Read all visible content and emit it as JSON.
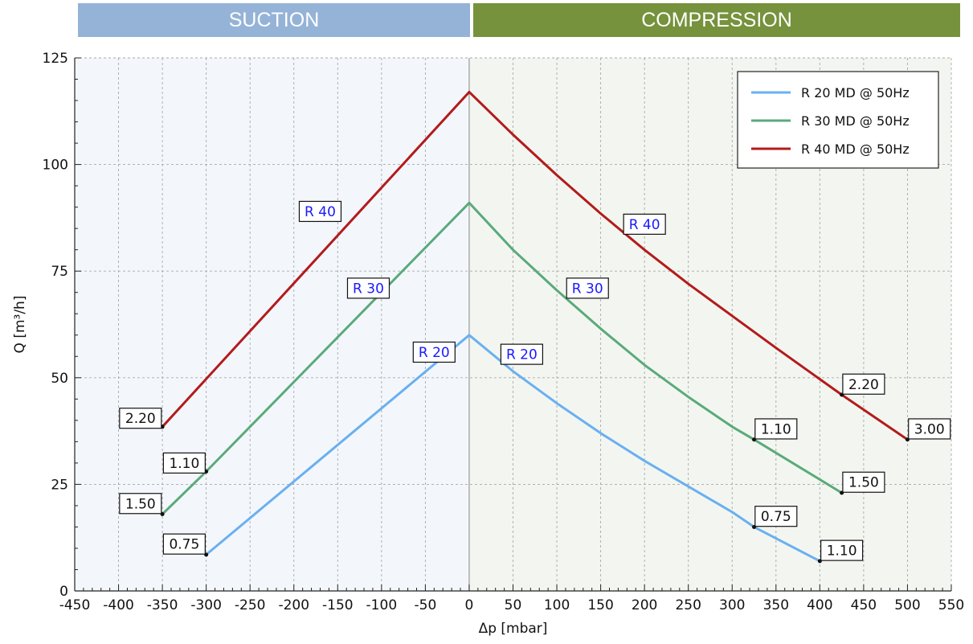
{
  "banners": {
    "suction": {
      "label": "SUCTION",
      "color": "#95b3d7"
    },
    "compression": {
      "label": "COMPRESSION",
      "color": "#76923c"
    }
  },
  "chart_data": {
    "type": "line",
    "xlabel": "Δp [mbar]",
    "ylabel": "Q [m³/h]",
    "xlim": [
      -450,
      550
    ],
    "ylim": [
      0,
      125
    ],
    "xticks": [
      -450,
      -400,
      -350,
      -300,
      -250,
      -200,
      -150,
      -100,
      -50,
      0,
      50,
      100,
      150,
      200,
      250,
      300,
      350,
      400,
      450,
      500,
      550
    ],
    "yticks": [
      0,
      25,
      50,
      75,
      100,
      125
    ],
    "grid": true,
    "legend_position": "top-right",
    "regions": [
      {
        "name": "suction",
        "x_range": [
          -450,
          0
        ],
        "fill": "#f3f7fc"
      },
      {
        "name": "compression",
        "x_range": [
          0,
          550
        ],
        "fill": "#f3f6f0"
      }
    ],
    "series": [
      {
        "name": "R 20 MD @ 50Hz",
        "color": "#6ab0f0",
        "x": [
          -300,
          0,
          325,
          400
        ],
        "y": [
          8.5,
          60,
          15,
          7
        ],
        "curve": [
          [
            0,
            60
          ],
          [
            50,
            51.5
          ],
          [
            100,
            44
          ],
          [
            150,
            37
          ],
          [
            200,
            30.5
          ],
          [
            250,
            24.5
          ],
          [
            300,
            18.5
          ],
          [
            325,
            15
          ],
          [
            400,
            7
          ]
        ]
      },
      {
        "name": "R 30 MD @ 50Hz",
        "color": "#5aaa7a",
        "x": [
          -350,
          -300,
          0,
          325,
          425
        ],
        "y": [
          18,
          28,
          91,
          35.5,
          23
        ],
        "curve": [
          [
            0,
            91
          ],
          [
            50,
            80
          ],
          [
            100,
            70.5
          ],
          [
            150,
            61.5
          ],
          [
            200,
            53
          ],
          [
            250,
            45.5
          ],
          [
            300,
            38.5
          ],
          [
            325,
            35.5
          ],
          [
            425,
            23
          ]
        ]
      },
      {
        "name": "R 40 MD @ 50Hz",
        "color": "#b31b1b",
        "x": [
          -350,
          0,
          425,
          500
        ],
        "y": [
          38.5,
          117,
          46,
          35.5
        ],
        "curve": [
          [
            0,
            117
          ],
          [
            50,
            107
          ],
          [
            100,
            97.5
          ],
          [
            150,
            88.5
          ],
          [
            200,
            80
          ],
          [
            250,
            72
          ],
          [
            300,
            64.5
          ],
          [
            350,
            57
          ],
          [
            425,
            46
          ],
          [
            500,
            35.5
          ]
        ]
      }
    ],
    "annotations": [
      {
        "text": "R 40",
        "x": -170,
        "y": 89,
        "color": "#1a1aff"
      },
      {
        "text": "R 30",
        "x": -115,
        "y": 71,
        "color": "#1a1aff"
      },
      {
        "text": "R 20",
        "x": -40,
        "y": 56,
        "color": "#1a1aff"
      },
      {
        "text": "R 40",
        "x": 200,
        "y": 86,
        "color": "#1a1aff"
      },
      {
        "text": "R 30",
        "x": 135,
        "y": 71,
        "color": "#1a1aff"
      },
      {
        "text": "R 20",
        "x": 60,
        "y": 55.5,
        "color": "#1a1aff"
      },
      {
        "text": "2.20",
        "x": -375,
        "y": 40.5,
        "color": "#111111"
      },
      {
        "text": "1.10",
        "x": -325,
        "y": 30,
        "color": "#111111"
      },
      {
        "text": "1.50",
        "x": -375,
        "y": 20.5,
        "color": "#111111"
      },
      {
        "text": "0.75",
        "x": -325,
        "y": 11,
        "color": "#111111"
      },
      {
        "text": "1.10",
        "x": 350,
        "y": 38,
        "color": "#111111"
      },
      {
        "text": "0.75",
        "x": 350,
        "y": 17.5,
        "color": "#111111"
      },
      {
        "text": "2.20",
        "x": 450,
        "y": 48.5,
        "color": "#111111"
      },
      {
        "text": "1.50",
        "x": 450,
        "y": 25.5,
        "color": "#111111"
      },
      {
        "text": "3.00",
        "x": 525,
        "y": 38,
        "color": "#111111"
      },
      {
        "text": "1.10",
        "x": 425,
        "y": 9.5,
        "color": "#111111"
      }
    ],
    "markers": [
      {
        "x": -350,
        "y": 38.5
      },
      {
        "x": -300,
        "y": 28
      },
      {
        "x": -350,
        "y": 18
      },
      {
        "x": -300,
        "y": 8.5
      },
      {
        "x": 325,
        "y": 35.5
      },
      {
        "x": 325,
        "y": 15
      },
      {
        "x": 425,
        "y": 46
      },
      {
        "x": 425,
        "y": 23
      },
      {
        "x": 500,
        "y": 35.5
      },
      {
        "x": 400,
        "y": 7
      }
    ]
  }
}
